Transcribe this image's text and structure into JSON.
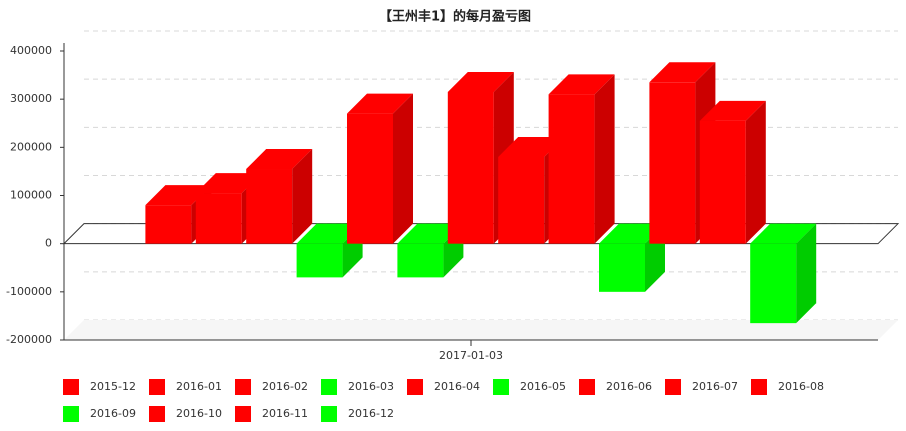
{
  "chart_data": {
    "type": "bar3d",
    "title": "【王州丰1】的每月盈亏图",
    "categories": [
      "2017-01-03"
    ],
    "ylim": [
      -200000,
      400000
    ],
    "yticks": [
      -200000,
      -100000,
      0,
      100000,
      200000,
      300000,
      400000
    ],
    "grid": true,
    "legend": "bottom",
    "series": [
      {
        "name": "2015-12",
        "color": "#ff0000",
        "values": [
          80000
        ]
      },
      {
        "name": "2016-01",
        "color": "#ff0000",
        "values": [
          105000
        ]
      },
      {
        "name": "2016-02",
        "color": "#ff0000",
        "values": [
          155000
        ]
      },
      {
        "name": "2016-03",
        "color": "#00ff00",
        "values": [
          -70000
        ]
      },
      {
        "name": "2016-04",
        "color": "#ff0000",
        "values": [
          270000
        ]
      },
      {
        "name": "2016-05",
        "color": "#00ff00",
        "values": [
          -70000
        ]
      },
      {
        "name": "2016-06",
        "color": "#ff0000",
        "values": [
          315000
        ]
      },
      {
        "name": "2016-07",
        "color": "#ff0000",
        "values": [
          180000
        ]
      },
      {
        "name": "2016-08",
        "color": "#ff0000",
        "values": [
          310000
        ]
      },
      {
        "name": "2016-09",
        "color": "#00ff00",
        "values": [
          -100000
        ]
      },
      {
        "name": "2016-10",
        "color": "#ff0000",
        "values": [
          335000
        ]
      },
      {
        "name": "2016-11",
        "color": "#ff0000",
        "values": [
          255000
        ]
      },
      {
        "name": "2016-12",
        "color": "#00ff00",
        "values": [
          -165000
        ]
      }
    ]
  }
}
